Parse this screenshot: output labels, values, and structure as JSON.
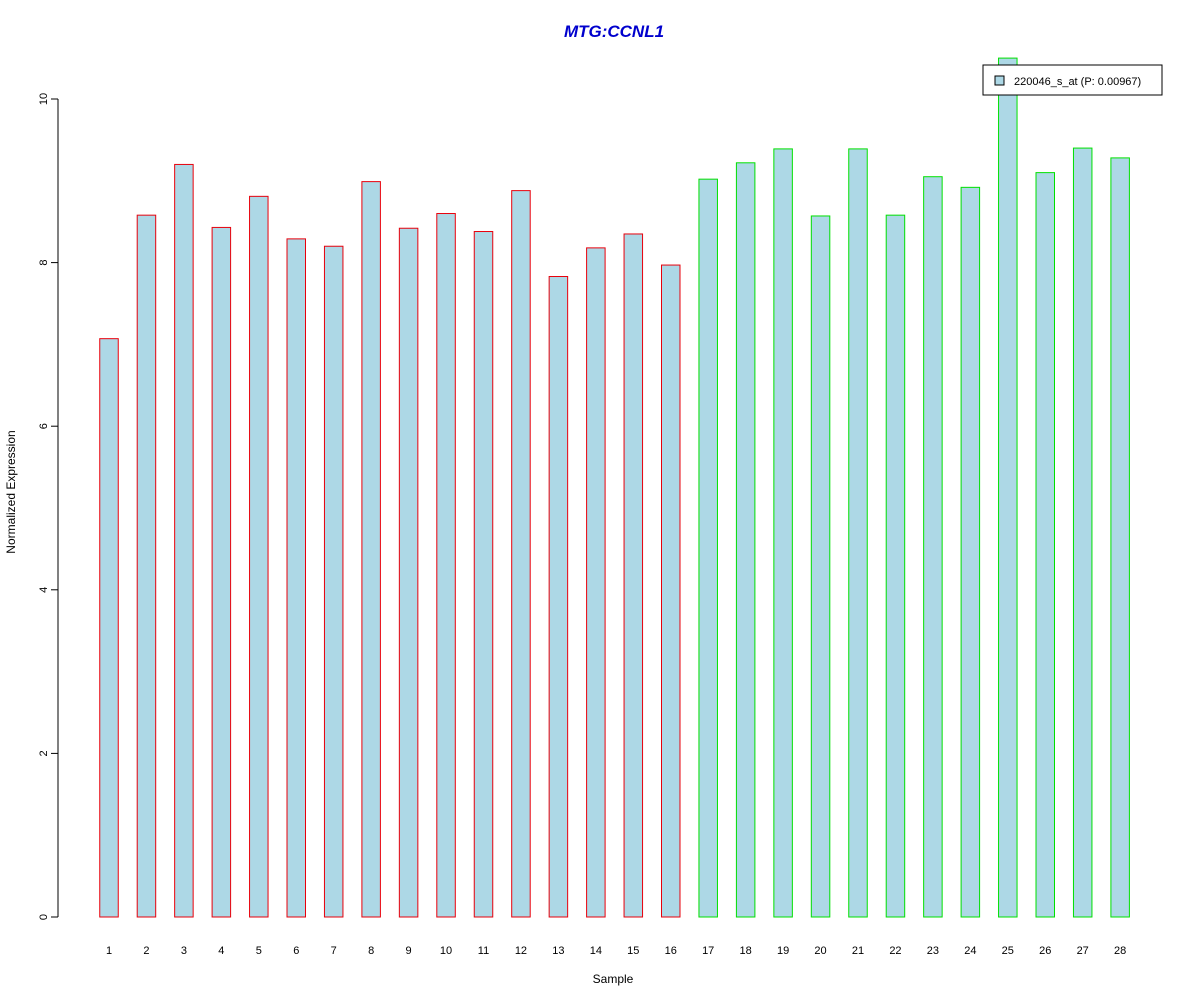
{
  "chart_data": {
    "type": "bar",
    "title": "MTG:CCNL1",
    "xlabel": "Sample",
    "ylabel": "Normalized Expression",
    "ylim": [
      0,
      10
    ],
    "yticks": [
      0,
      2,
      4,
      6,
      8,
      10
    ],
    "grid": false,
    "categories": [
      "1",
      "2",
      "3",
      "4",
      "5",
      "6",
      "7",
      "8",
      "9",
      "10",
      "11",
      "12",
      "13",
      "14",
      "15",
      "16",
      "17",
      "18",
      "19",
      "20",
      "21",
      "22",
      "23",
      "24",
      "25",
      "26",
      "27",
      "28"
    ],
    "values": [
      7.07,
      8.58,
      9.2,
      8.43,
      8.81,
      8.29,
      8.2,
      8.99,
      8.42,
      8.6,
      8.38,
      8.88,
      7.83,
      8.18,
      8.35,
      7.97,
      9.02,
      9.22,
      9.39,
      8.57,
      9.39,
      8.58,
      9.05,
      8.92,
      10.5,
      9.1,
      9.4,
      9.28
    ],
    "groups": [
      {
        "samples": [
          1,
          16
        ],
        "border_color": "#e8000b"
      },
      {
        "samples": [
          17,
          28
        ],
        "border_color": "#00e000"
      }
    ],
    "bar_fill": "#add8e6",
    "title_color": "#0000cd",
    "legend": {
      "placement": "top-right",
      "entries": [
        {
          "label": "220046_s_at (P: 0.00967)",
          "color": "#add8e6"
        }
      ]
    }
  }
}
